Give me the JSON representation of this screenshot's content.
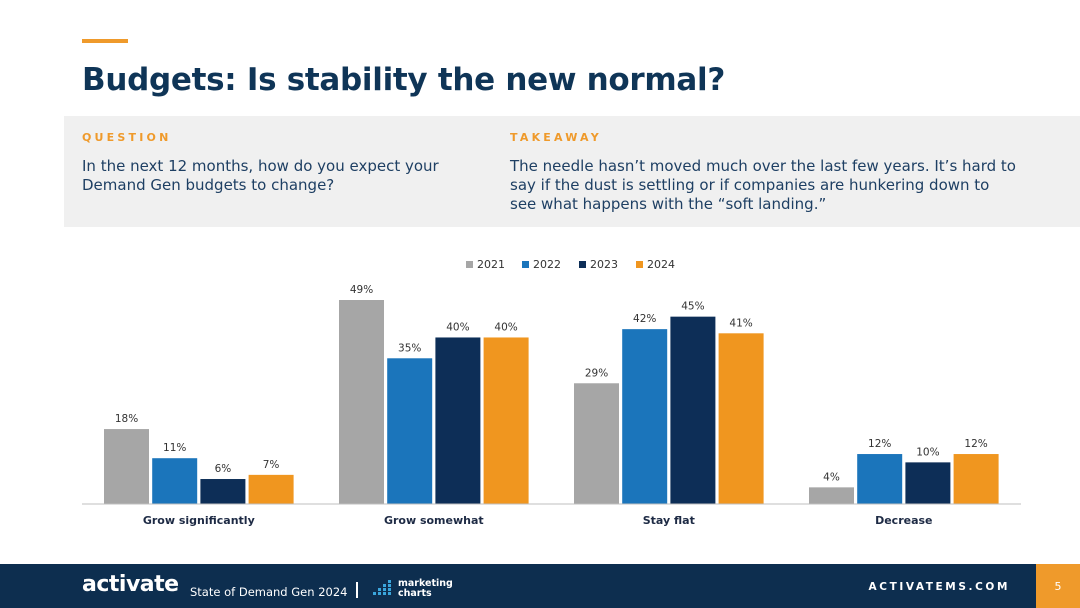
{
  "slide": {
    "title": "Budgets: Is stability the new normal?",
    "question_label": "QUESTION",
    "question_text": "In the next 12 months, how do you expect your Demand Gen budgets to change?",
    "takeaway_label": "TAKEAWAY",
    "takeaway_text": "The needle hasn’t moved much over the last few years. It’s hard to say if the dust is settling or if companies are hunkering down to see what happens with the “soft landing.”"
  },
  "colors": {
    "accent": "#ef9a2b",
    "navy": "#0d2e4f",
    "title": "#0f3557"
  },
  "chart_data": {
    "type": "bar",
    "categories": [
      "Grow significantly",
      "Grow somewhat",
      "Stay flat",
      "Decrease"
    ],
    "series": [
      {
        "name": "2021",
        "color": "#a6a6a6",
        "values": [
          18,
          49,
          29,
          4
        ]
      },
      {
        "name": "2022",
        "color": "#1b75bb",
        "values": [
          11,
          35,
          42,
          12
        ]
      },
      {
        "name": "2023",
        "color": "#0d2e57",
        "values": [
          6,
          40,
          45,
          10
        ]
      },
      {
        "name": "2024",
        "color": "#f0961f",
        "values": [
          7,
          40,
          41,
          12
        ]
      }
    ],
    "value_suffix": "%",
    "ylim": [
      0,
      49
    ],
    "grid": false,
    "legend_position": "top-center",
    "title": "",
    "xlabel": "",
    "ylabel": ""
  },
  "footer": {
    "logo_text": "activate",
    "report_name": "State of Demand Gen 2024",
    "partner_line1": "marketing",
    "partner_line2": "charts",
    "url": "ACTIVATEMS.COM",
    "page_number": "5"
  }
}
